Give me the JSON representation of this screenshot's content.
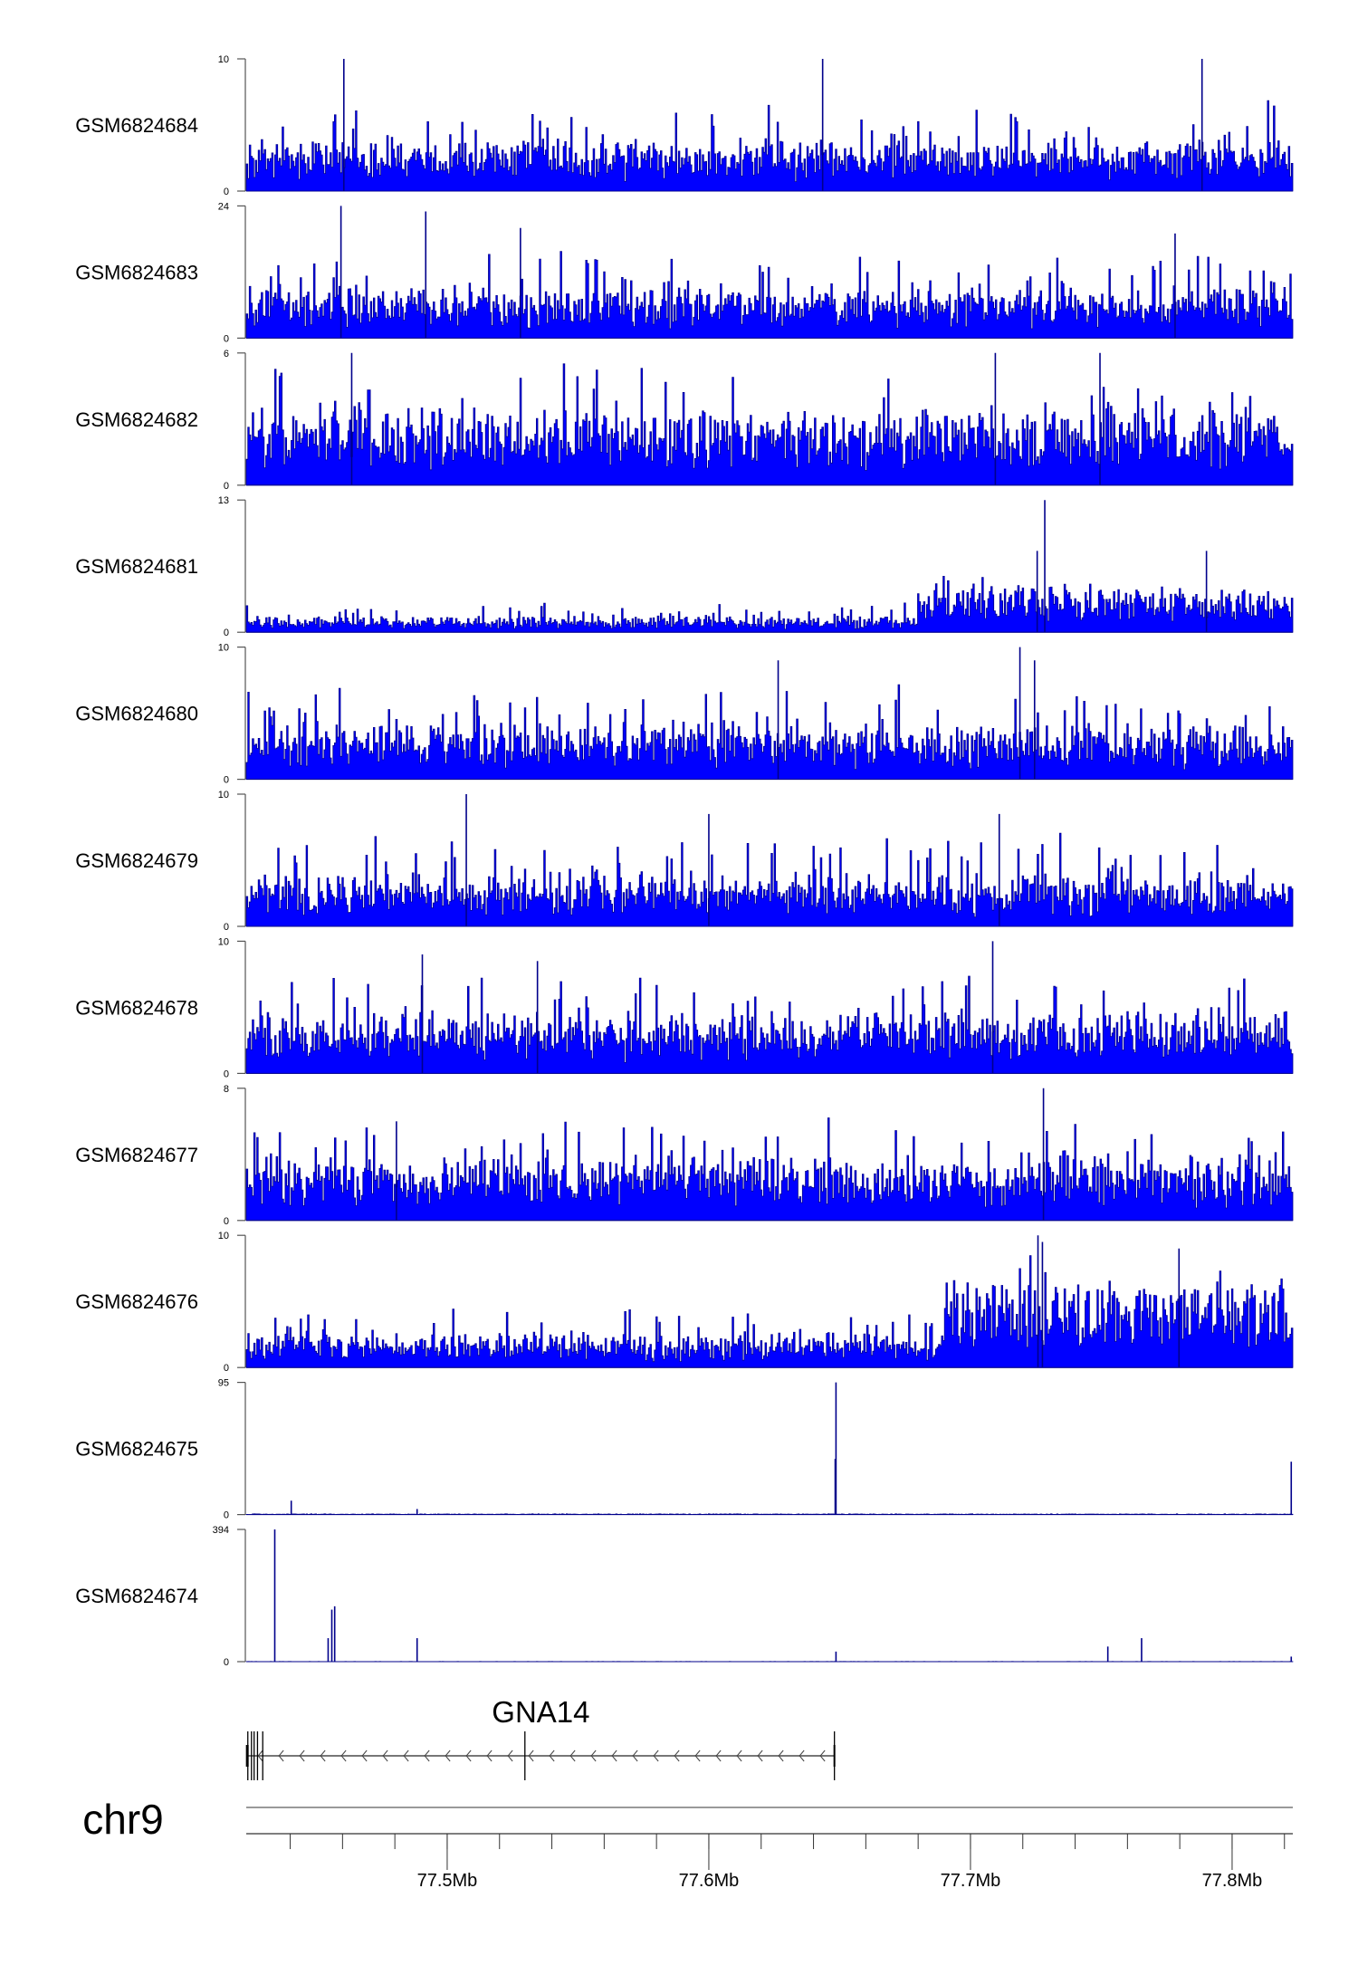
{
  "chart_data": {
    "type": "area",
    "title": "",
    "xlabel": "",
    "chromosome": "chr9",
    "xlim_mb": [
      77.4232,
      77.8232
    ],
    "x_ticks": [
      {
        "value": 77.5,
        "label": "77.5Mb"
      },
      {
        "value": 77.6,
        "label": "77.6Mb"
      },
      {
        "value": 77.7,
        "label": "77.7Mb"
      },
      {
        "value": 77.8,
        "label": "77.8Mb"
      }
    ],
    "minor_tick_step_mb": 0.02,
    "colors": {
      "fill": "#0000ff",
      "line": "#00008b",
      "axis": "#555555"
    },
    "tracks": [
      {
        "name": "GSM6824684",
        "ymin_label": "0",
        "ymax_label": "10",
        "ymax": 10,
        "baseline": 2.2,
        "spread": 2.5,
        "rise_from": null,
        "peaks": [
          [
            77.4605,
            10
          ],
          [
            77.6435,
            10
          ],
          [
            77.7885,
            10
          ]
        ]
      },
      {
        "name": "GSM6824683",
        "ymin_label": "0",
        "ymax_label": "24",
        "ymax": 24,
        "baseline": 5,
        "spread": 6,
        "rise_from": null,
        "peaks": [
          [
            77.4594,
            24
          ],
          [
            77.4918,
            23
          ],
          [
            77.528,
            20
          ],
          [
            77.7782,
            19
          ]
        ]
      },
      {
        "name": "GSM6824682",
        "ymin_label": "0",
        "ymax_label": "6",
        "ymax": 6,
        "baseline": 2.0,
        "spread": 2.0,
        "rise_from": null,
        "peaks": [
          [
            77.4635,
            6
          ],
          [
            77.7095,
            6
          ],
          [
            77.7495,
            6
          ]
        ]
      },
      {
        "name": "GSM6824681",
        "ymin_label": "0",
        "ymax_label": "13",
        "ymax": 13,
        "baseline": 0.8,
        "spread": 1.2,
        "rise_from": 77.68,
        "rise_level": 3.0,
        "peaks": [
          [
            77.7284,
            13
          ],
          [
            77.7255,
            8
          ],
          [
            77.7902,
            8
          ]
        ]
      },
      {
        "name": "GSM6824680",
        "ymin_label": "0",
        "ymax_label": "10",
        "ymax": 10,
        "baseline": 2.2,
        "spread": 3.0,
        "rise_from": null,
        "peaks": [
          [
            77.7189,
            10
          ],
          [
            77.6265,
            9
          ],
          [
            77.7245,
            9
          ]
        ]
      },
      {
        "name": "GSM6824679",
        "ymin_label": "0",
        "ymax_label": "10",
        "ymax": 10,
        "baseline": 2.0,
        "spread": 3.0,
        "rise_from": null,
        "peaks": [
          [
            77.5073,
            10
          ],
          [
            77.6,
            8.5
          ],
          [
            77.711,
            8.5
          ]
        ]
      },
      {
        "name": "GSM6824678",
        "ymin_label": "0",
        "ymax_label": "10",
        "ymax": 10,
        "baseline": 2.5,
        "spread": 3.0,
        "rise_from": null,
        "peaks": [
          [
            77.7085,
            10
          ],
          [
            77.4905,
            9
          ],
          [
            77.5345,
            8.5
          ]
        ]
      },
      {
        "name": "GSM6824677",
        "ymin_label": "0",
        "ymax_label": "8",
        "ymax": 8,
        "baseline": 2.2,
        "spread": 2.4,
        "rise_from": null,
        "peaks": [
          [
            77.7279,
            8
          ],
          [
            77.4806,
            6
          ]
        ]
      },
      {
        "name": "GSM6824676",
        "ymin_label": "0",
        "ymax_label": "10",
        "ymax": 10,
        "baseline": 1.3,
        "spread": 2.0,
        "rise_from": 77.69,
        "rise_level": 4.5,
        "peaks": [
          [
            77.7258,
            10
          ],
          [
            77.7275,
            9.5
          ],
          [
            77.7797,
            9
          ]
        ]
      },
      {
        "name": "GSM6824675",
        "ymin_label": "0",
        "ymax_label": "95",
        "ymax": 95,
        "baseline": 0.5,
        "spread": 1.0,
        "rise_from": null,
        "peaks": [
          [
            77.6486,
            95
          ],
          [
            77.6483,
            40
          ],
          [
            77.4404,
            10
          ],
          [
            77.8226,
            38
          ],
          [
            77.4885,
            4
          ]
        ]
      },
      {
        "name": "GSM6824674",
        "ymin_label": "0",
        "ymax_label": "394",
        "ymax": 394,
        "baseline": 0.5,
        "spread": 1.5,
        "rise_from": null,
        "peaks": [
          [
            77.4341,
            394
          ],
          [
            77.4559,
            155
          ],
          [
            77.457,
            165
          ],
          [
            77.4545,
            70
          ],
          [
            77.4885,
            70
          ],
          [
            77.6486,
            30
          ],
          [
            77.7525,
            45
          ],
          [
            77.7654,
            70
          ],
          [
            77.8226,
            15
          ]
        ]
      }
    ],
    "gene": {
      "name": "GNA14",
      "strand": "-",
      "start_mb": 77.4236,
      "end_mb": 77.648,
      "exons_mb": [
        77.4238,
        77.4252,
        77.4262,
        77.4275,
        77.4295,
        77.5297,
        77.648
      ]
    }
  }
}
